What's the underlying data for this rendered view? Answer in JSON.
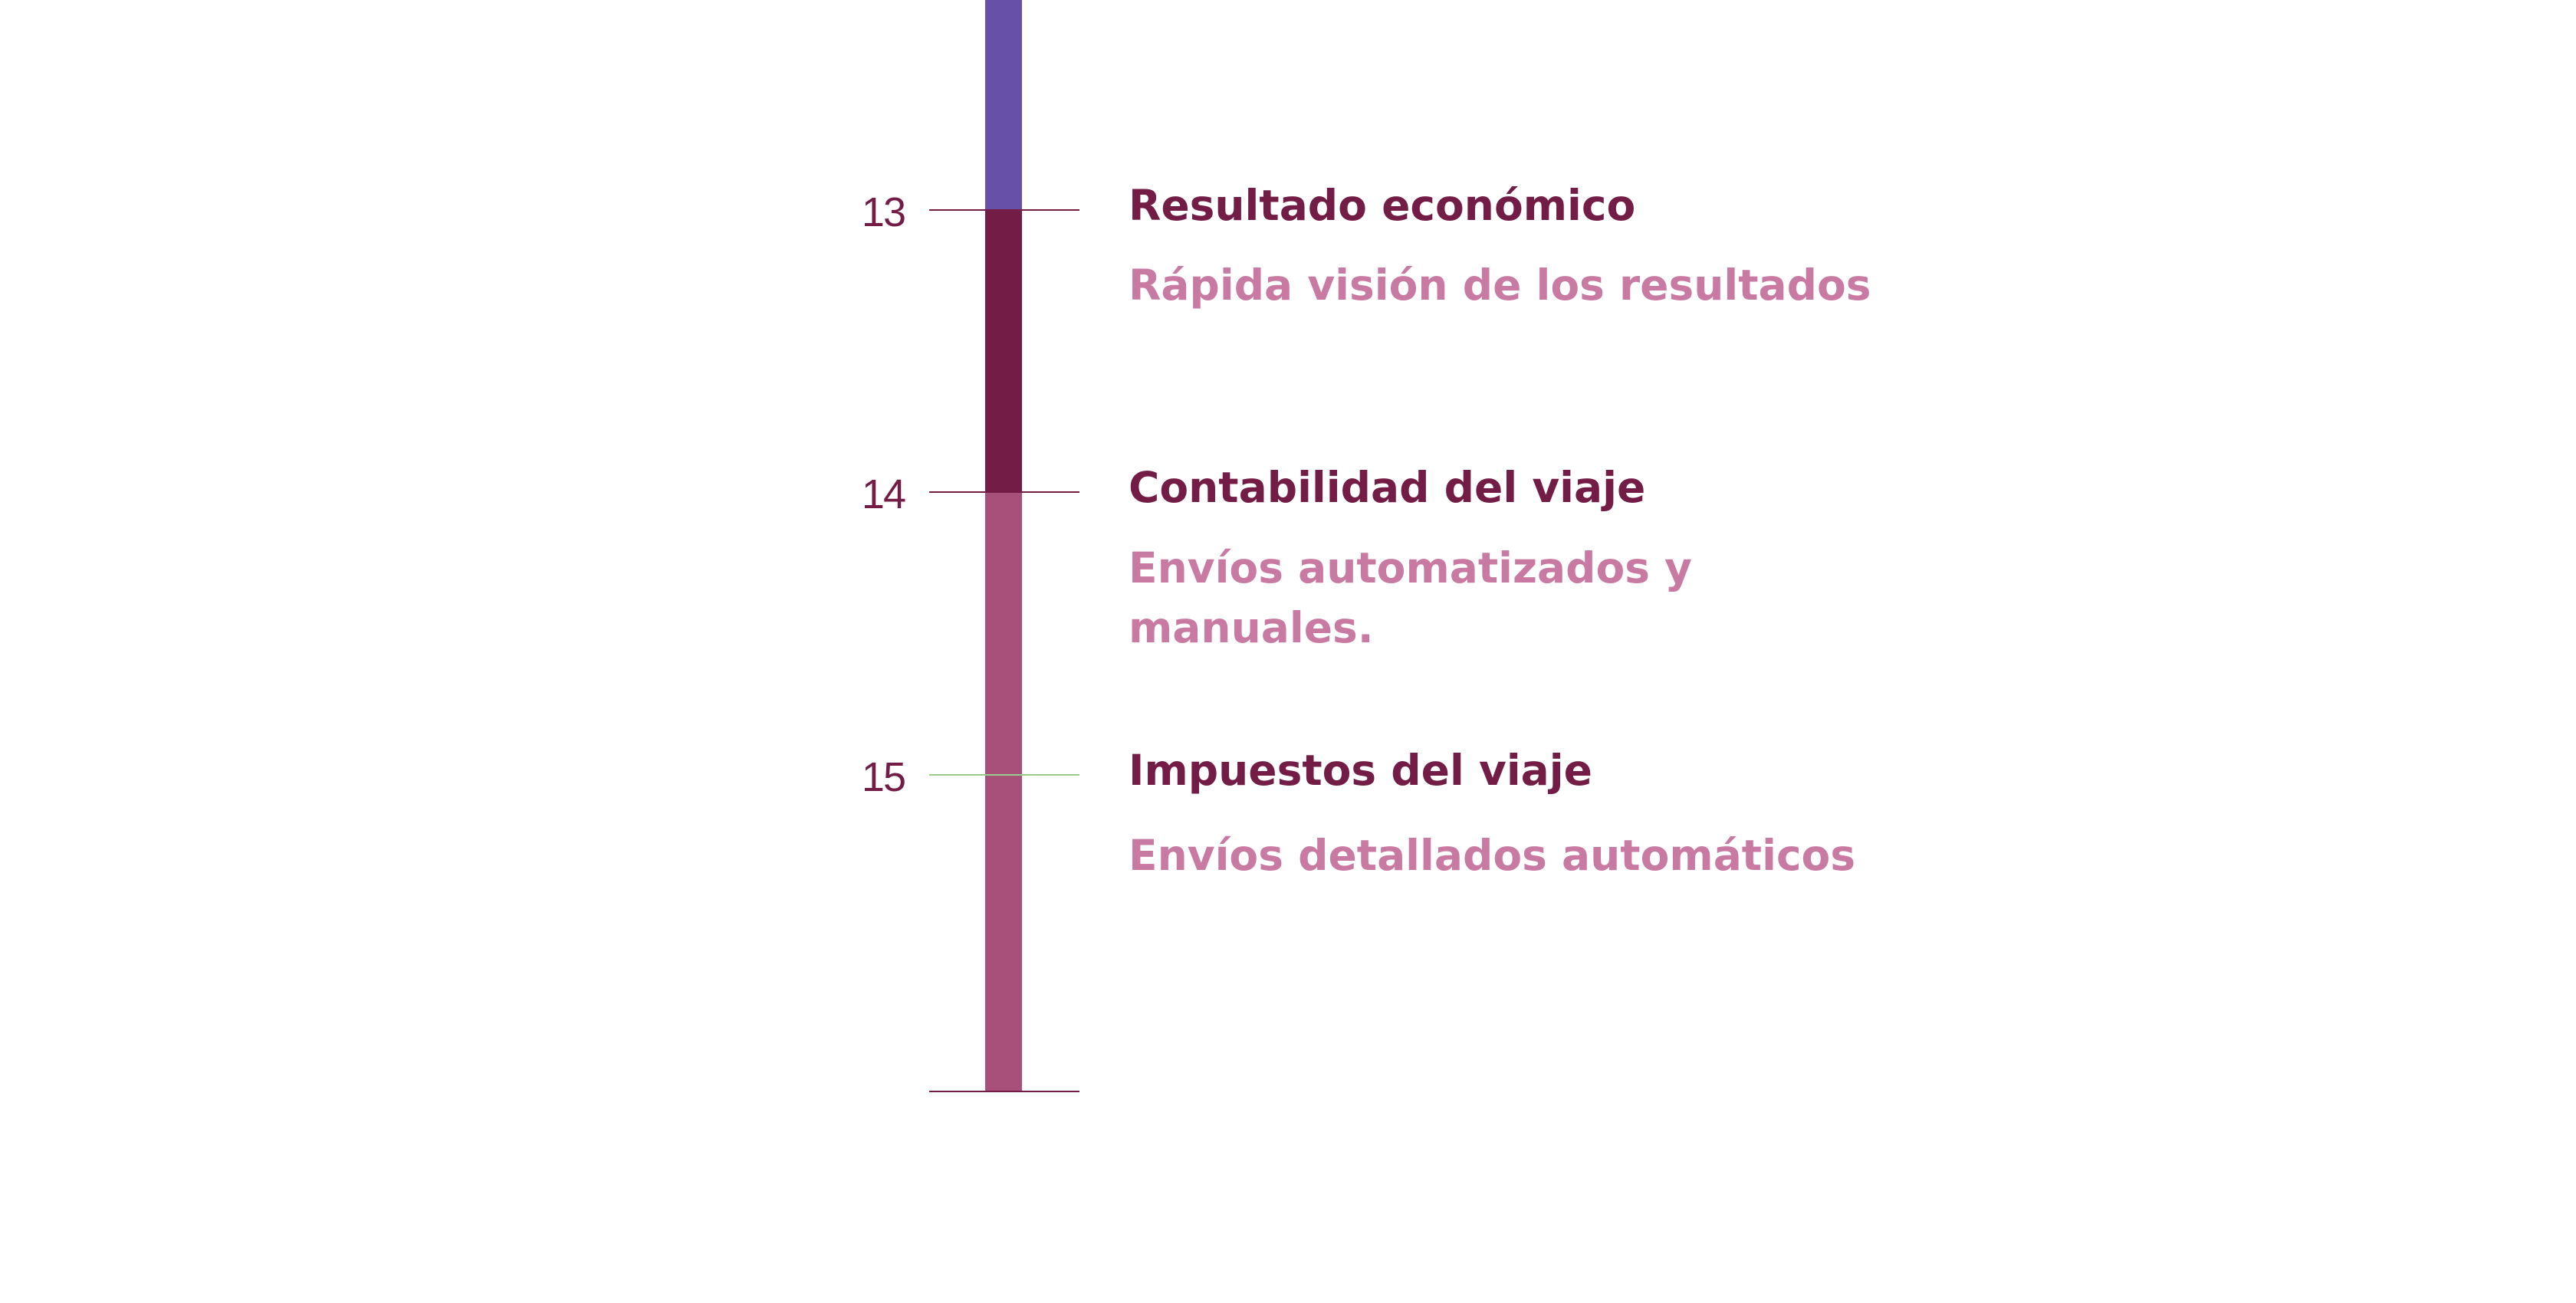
{
  "steps": [
    {
      "number": "13",
      "title": "Resultado económico",
      "description": "Rápida visión de los resultados"
    },
    {
      "number": "14",
      "title": "Contabilidad del viaje",
      "description": "Envíos automatizados y manuales."
    },
    {
      "number": "15",
      "title": "Impuestos del viaje",
      "description": "Envíos detallados automáticos"
    }
  ],
  "colors": {
    "bar_upper": "#6650a8",
    "bar_middle": "#721c46",
    "bar_lower": "#a85079",
    "title_text": "#721c46",
    "description_text": "#c97aa3",
    "tick_default": "#721c46",
    "tick_highlight": "#98cc88"
  }
}
